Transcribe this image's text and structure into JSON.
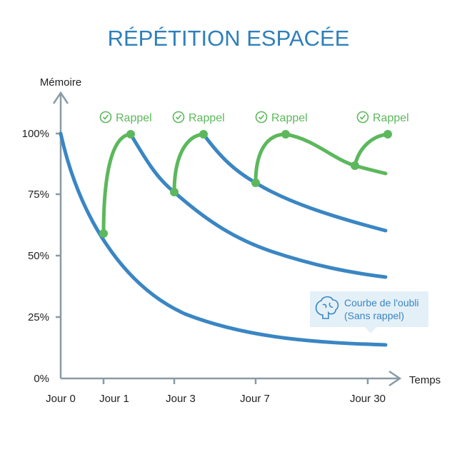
{
  "title": "RÉPÉTITION ESPACÉE",
  "chart_data": {
    "type": "line",
    "ylabel": "Mémoire",
    "xlabel": "Temps",
    "y_ticks": [
      "100%",
      "75%",
      "50%",
      "25%",
      "0%"
    ],
    "x_ticks": [
      "Jour 0",
      "Jour 1",
      "Jour 3",
      "Jour 7",
      "Jour 30"
    ],
    "ylim": [
      0,
      100
    ],
    "review_label": "Rappel",
    "review_points": [
      {
        "day": "Jour 1",
        "before": 59,
        "after": 100
      },
      {
        "day": "Jour 3",
        "before": 76,
        "after": 100
      },
      {
        "day": "Jour 7",
        "before": 80,
        "after": 100
      },
      {
        "day": "Jour 30",
        "before": 87,
        "after": 100
      }
    ],
    "forgetting_curve_end": 14,
    "legend": {
      "line1": "Courbe de l'oubli",
      "line2": "(Sans rappel)",
      "icon": "brain-icon"
    },
    "colors": {
      "forgetting": "#3a86c3",
      "review": "#5cb85c",
      "title": "#2f7fba",
      "axis": "#8a9aa6"
    }
  }
}
